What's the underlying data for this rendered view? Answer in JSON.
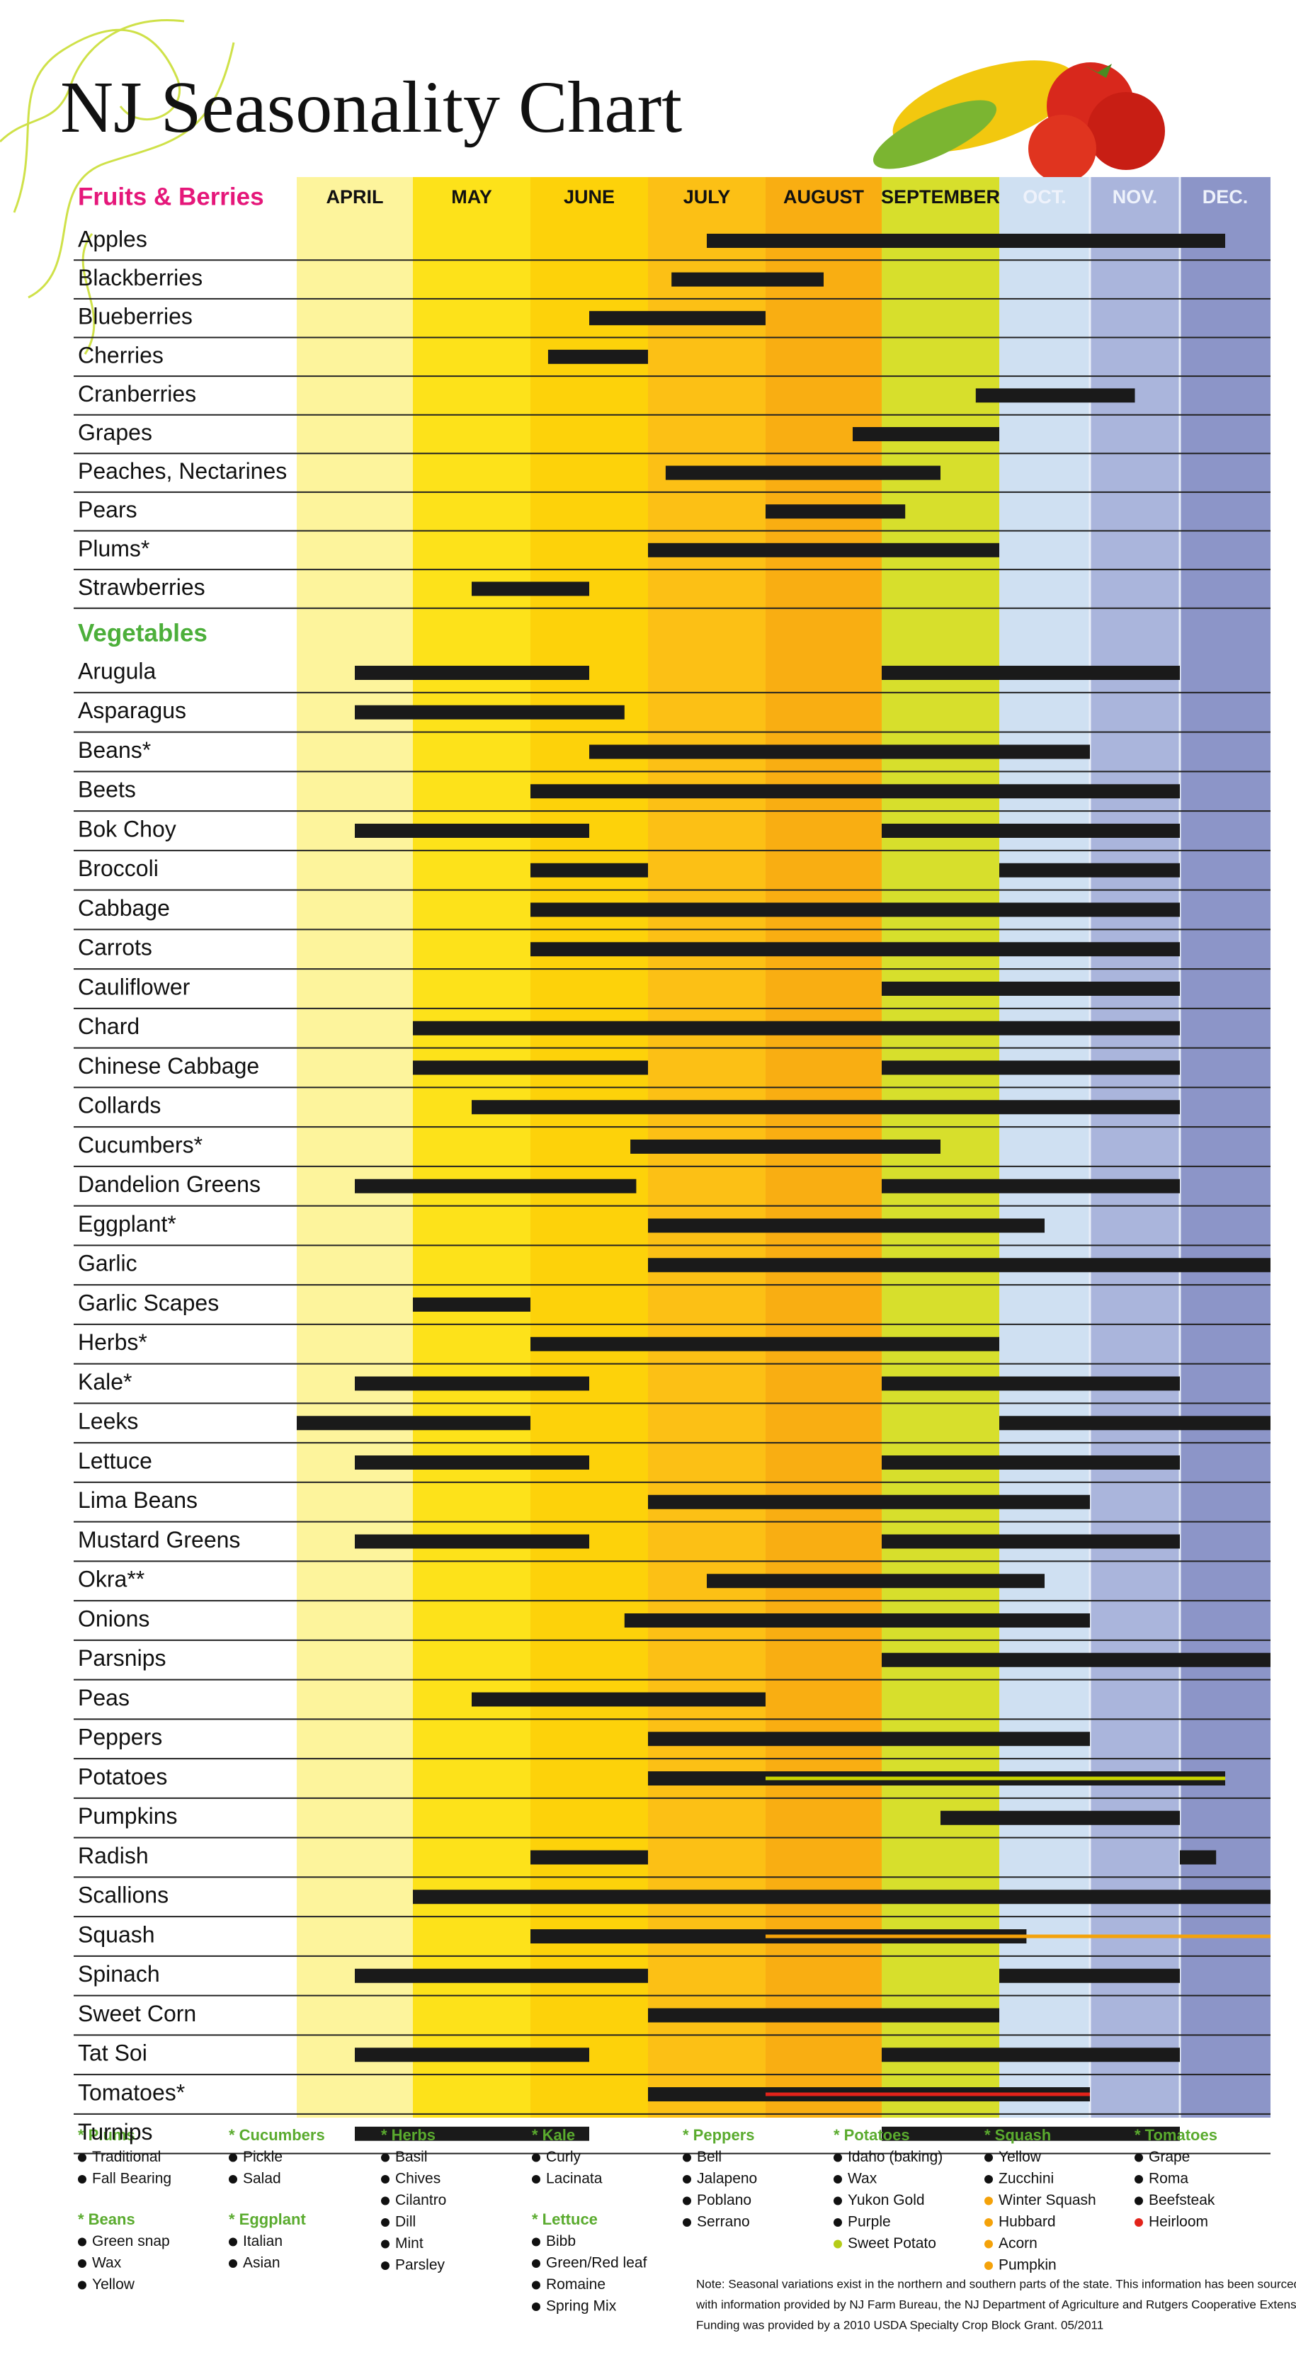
{
  "title": "NJ Seasonality Chart",
  "xlim": [
    4,
    13
  ],
  "months": [
    {
      "label": "APRIL",
      "value": 4,
      "color": "#fdf49c"
    },
    {
      "label": "MAY",
      "value": 5,
      "color": "#fde21a"
    },
    {
      "label": "JUNE",
      "value": 6,
      "color": "#fdd20a"
    },
    {
      "label": "JULY",
      "value": 7,
      "color": "#fcc015"
    },
    {
      "label": "AUGUST",
      "value": 8,
      "color": "#f9ae12"
    },
    {
      "label": "SEPTEMBER",
      "value": 9,
      "color": "#d7df2c"
    },
    {
      "label": "OCT.",
      "value": 10,
      "color": "#cfe0f2"
    },
    {
      "label": "NOV.",
      "value": 11,
      "color": "#aab5dc"
    },
    {
      "label": "DEC.",
      "value": 12,
      "color": "#8c95c8"
    }
  ],
  "bar_color": "#1a1a1a",
  "fruits": {
    "heading": "Fruits & Berries",
    "heading_color": "#e5177a",
    "rows": [
      {
        "name": "Apples",
        "seasons": [
          [
            7.5,
            12.5
          ]
        ]
      },
      {
        "name": "Blackberries",
        "seasons": [
          [
            7.2,
            8.5
          ]
        ]
      },
      {
        "name": "Blueberries",
        "seasons": [
          [
            6.5,
            8
          ]
        ]
      },
      {
        "name": "Cherries",
        "seasons": [
          [
            6.15,
            7
          ]
        ]
      },
      {
        "name": "Cranberries",
        "seasons": [
          [
            9.8,
            11.5
          ]
        ]
      },
      {
        "name": "Grapes",
        "seasons": [
          [
            8.75,
            10
          ]
        ]
      },
      {
        "name": "Peaches, Nectarines",
        "seasons": [
          [
            7.15,
            9.5
          ]
        ]
      },
      {
        "name": "Pears",
        "seasons": [
          [
            8,
            9.2
          ]
        ]
      },
      {
        "name": "Plums*",
        "seasons": [
          [
            7,
            10
          ]
        ]
      },
      {
        "name": "Strawberries",
        "seasons": [
          [
            5.5,
            6.5
          ]
        ]
      }
    ]
  },
  "vegetables": {
    "heading": "Vegetables",
    "heading_color": "#4caf3a",
    "rows": [
      {
        "name": "Arugula",
        "seasons": [
          [
            4.5,
            6.5
          ],
          [
            9,
            12
          ]
        ]
      },
      {
        "name": "Asparagus",
        "seasons": [
          [
            4.5,
            6.8
          ]
        ]
      },
      {
        "name": "Beans*",
        "seasons": [
          [
            6.5,
            11
          ]
        ]
      },
      {
        "name": "Beets",
        "seasons": [
          [
            6,
            12
          ]
        ]
      },
      {
        "name": "Bok Choy",
        "seasons": [
          [
            4.5,
            6.5
          ],
          [
            9,
            12
          ]
        ]
      },
      {
        "name": "Broccoli",
        "seasons": [
          [
            6,
            7
          ],
          [
            10,
            12
          ]
        ]
      },
      {
        "name": "Cabbage",
        "seasons": [
          [
            6,
            12
          ]
        ]
      },
      {
        "name": "Carrots",
        "seasons": [
          [
            6,
            12
          ]
        ]
      },
      {
        "name": "Cauliflower",
        "seasons": [
          [
            9,
            12
          ]
        ]
      },
      {
        "name": "Chard",
        "seasons": [
          [
            5,
            12
          ]
        ]
      },
      {
        "name": "Chinese Cabbage",
        "seasons": [
          [
            5,
            7
          ],
          [
            9,
            12
          ]
        ]
      },
      {
        "name": "Collards",
        "seasons": [
          [
            5.5,
            12
          ]
        ]
      },
      {
        "name": "Cucumbers*",
        "seasons": [
          [
            6.85,
            9.5
          ]
        ]
      },
      {
        "name": "Dandelion Greens",
        "seasons": [
          [
            4.5,
            6.9
          ],
          [
            9,
            12
          ]
        ]
      },
      {
        "name": "Eggplant*",
        "seasons": [
          [
            7,
            10.5
          ]
        ]
      },
      {
        "name": "Garlic",
        "seasons": [
          [
            7,
            13
          ]
        ]
      },
      {
        "name": "Garlic Scapes",
        "seasons": [
          [
            5,
            6
          ]
        ]
      },
      {
        "name": "Herbs*",
        "seasons": [
          [
            6,
            10
          ]
        ]
      },
      {
        "name": "Kale*",
        "seasons": [
          [
            4.5,
            6.5
          ],
          [
            9,
            12
          ]
        ]
      },
      {
        "name": "Leeks",
        "seasons": [
          [
            4,
            6
          ],
          [
            10,
            13
          ]
        ]
      },
      {
        "name": "Lettuce",
        "seasons": [
          [
            4.5,
            6.5
          ],
          [
            9,
            12
          ]
        ]
      },
      {
        "name": "Lima Beans",
        "seasons": [
          [
            7,
            11
          ]
        ]
      },
      {
        "name": "Mustard Greens",
        "seasons": [
          [
            4.5,
            6.5
          ],
          [
            9,
            12
          ]
        ]
      },
      {
        "name": "Okra**",
        "seasons": [
          [
            7.5,
            10.5
          ]
        ]
      },
      {
        "name": "Onions",
        "seasons": [
          [
            6.8,
            11
          ]
        ]
      },
      {
        "name": "Parsnips",
        "seasons": [
          [
            9,
            13
          ]
        ]
      },
      {
        "name": "Peas",
        "seasons": [
          [
            5.5,
            8
          ]
        ]
      },
      {
        "name": "Peppers",
        "seasons": [
          [
            7,
            11
          ]
        ]
      },
      {
        "name": "Potatoes",
        "seasons": [
          [
            7,
            12.5
          ]
        ],
        "highlight": {
          "range": [
            8,
            12.5
          ],
          "color": "#c9d600"
        }
      },
      {
        "name": "Pumpkins",
        "seasons": [
          [
            9.5,
            12
          ]
        ]
      },
      {
        "name": "Radish",
        "seasons": [
          [
            6,
            7
          ],
          [
            12,
            12.4
          ]
        ]
      },
      {
        "name": "Scallions",
        "seasons": [
          [
            5,
            13
          ]
        ]
      },
      {
        "name": "Squash",
        "seasons": [
          [
            6,
            10.3
          ]
        ],
        "highlight": {
          "range": [
            8,
            13
          ],
          "color": "#f4a20a"
        }
      },
      {
        "name": "Spinach",
        "seasons": [
          [
            4.5,
            7
          ],
          [
            10,
            12
          ]
        ]
      },
      {
        "name": "Sweet Corn",
        "seasons": [
          [
            7,
            10
          ]
        ]
      },
      {
        "name": "Tat Soi",
        "seasons": [
          [
            4.5,
            6.5
          ],
          [
            9,
            12
          ]
        ]
      },
      {
        "name": "Tomatoes*",
        "seasons": [
          [
            7,
            11
          ]
        ],
        "highlight": {
          "range": [
            8,
            11
          ],
          "color": "#e2231a"
        }
      },
      {
        "name": "Turnips",
        "seasons": [
          [
            4.5,
            6.5
          ],
          [
            9,
            12
          ]
        ]
      }
    ]
  },
  "footnote_title_color": "#5aab2e",
  "footnotes": [
    [
      {
        "title": "* Plums",
        "items": [
          {
            "text": "Traditional",
            "bullet": "#111"
          },
          {
            "text": "Fall Bearing",
            "bullet": "#111"
          }
        ]
      },
      {
        "title": "* Beans",
        "items": [
          {
            "text": "Green snap",
            "bullet": "#111"
          },
          {
            "text": "Wax",
            "bullet": "#111"
          },
          {
            "text": "Yellow",
            "bullet": "#111"
          }
        ]
      }
    ],
    [
      {
        "title": "* Cucumbers",
        "items": [
          {
            "text": "Pickle",
            "bullet": "#111"
          },
          {
            "text": "Salad",
            "bullet": "#111"
          }
        ]
      },
      {
        "title": "* Eggplant",
        "items": [
          {
            "text": "Italian",
            "bullet": "#111"
          },
          {
            "text": "Asian",
            "bullet": "#111"
          }
        ]
      }
    ],
    [
      {
        "title": "* Herbs",
        "items": [
          {
            "text": "Basil",
            "bullet": "#111"
          },
          {
            "text": "Chives",
            "bullet": "#111"
          },
          {
            "text": "Cilantro",
            "bullet": "#111"
          },
          {
            "text": "Dill",
            "bullet": "#111"
          },
          {
            "text": "Mint",
            "bullet": "#111"
          },
          {
            "text": "Parsley",
            "bullet": "#111"
          }
        ]
      }
    ],
    [
      {
        "title": "* Kale",
        "items": [
          {
            "text": "Curly",
            "bullet": "#111"
          },
          {
            "text": "Lacinata",
            "bullet": "#111"
          }
        ]
      },
      {
        "title": "* Lettuce",
        "items": [
          {
            "text": "Bibb",
            "bullet": "#111"
          },
          {
            "text": "Green/Red leaf",
            "bullet": "#111"
          },
          {
            "text": "Romaine",
            "bullet": "#111"
          },
          {
            "text": "Spring Mix",
            "bullet": "#111"
          }
        ]
      }
    ],
    [
      {
        "title": "* Peppers",
        "items": [
          {
            "text": "Bell",
            "bullet": "#111"
          },
          {
            "text": "Jalapeno",
            "bullet": "#111"
          },
          {
            "text": "Poblano",
            "bullet": "#111"
          },
          {
            "text": "Serrano",
            "bullet": "#111"
          }
        ]
      }
    ],
    [
      {
        "title": "* Potatoes",
        "items": [
          {
            "text": "Idaho (baking)",
            "bullet": "#111"
          },
          {
            "text": "Wax",
            "bullet": "#111"
          },
          {
            "text": "Yukon Gold",
            "bullet": "#111"
          },
          {
            "text": "Purple",
            "bullet": "#111"
          },
          {
            "text": "Sweet Potato",
            "bullet": "#b5cc18"
          }
        ]
      }
    ],
    [
      {
        "title": "* Squash",
        "items": [
          {
            "text": "Yellow",
            "bullet": "#111"
          },
          {
            "text": "Zucchini",
            "bullet": "#111"
          },
          {
            "text": "Winter Squash",
            "bullet": "#f4a20a"
          },
          {
            "text": "Hubbard",
            "bullet": "#f4a20a"
          },
          {
            "text": "Acorn",
            "bullet": "#f4a20a"
          },
          {
            "text": "Pumpkin",
            "bullet": "#f4a20a"
          }
        ]
      }
    ],
    [
      {
        "title": "* Tomatoes",
        "items": [
          {
            "text": "Grape",
            "bullet": "#111"
          },
          {
            "text": "Roma",
            "bullet": "#111"
          },
          {
            "text": "Beefsteak",
            "bullet": "#111"
          },
          {
            "text": "Heirloom",
            "bullet": "#e2231a"
          }
        ]
      }
    ]
  ],
  "note": [
    "Note: Seasonal variations exist in the northern and southern parts of the state. This information has been sourced",
    "with information provided by NJ Farm Bureau, the NJ Department of Agriculture and Rutgers Cooperative Extension.",
    "Funding was provided by a 2010 USDA Specialty Crop Block Grant.  05/2011"
  ]
}
